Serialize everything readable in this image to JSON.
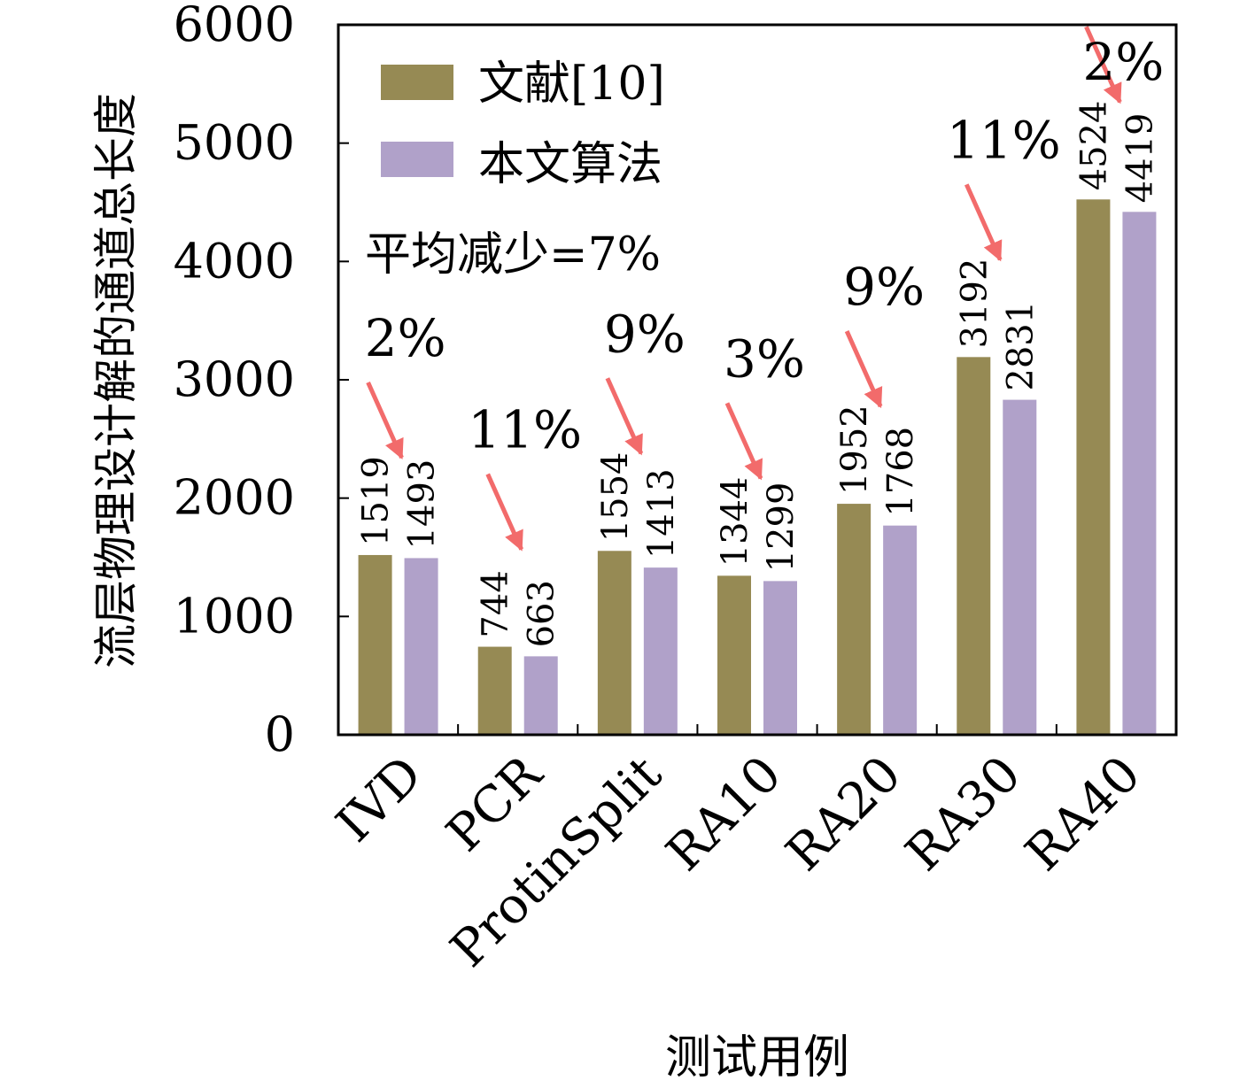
{
  "colors": {
    "series_a": "#968A54",
    "series_b": "#B0A1C9",
    "arrow": "#F26B6B",
    "axis": "#000000"
  },
  "chart_data": {
    "type": "bar",
    "ylabel": "流层物理设计解的通道总长度",
    "xlabel": "测试用例",
    "ylim": [
      0,
      6000
    ],
    "yticks": [
      0,
      1000,
      2000,
      3000,
      4000,
      5000,
      6000
    ],
    "categories": [
      "IVD",
      "PCR",
      "ProtinSplit",
      "RA10",
      "RA20",
      "RA30",
      "RA40"
    ],
    "series": [
      {
        "name": "文献[10]",
        "values": [
          1519,
          744,
          1554,
          1344,
          1952,
          3192,
          4524
        ]
      },
      {
        "name": "本文算法",
        "values": [
          1493,
          663,
          1413,
          1299,
          1768,
          2831,
          4419
        ]
      }
    ],
    "reductions": [
      "2%",
      "11%",
      "9%",
      "3%",
      "9%",
      "11%",
      "2%"
    ],
    "summary_note": "平均减少=7%",
    "legend_position": "top-left",
    "grid": false
  }
}
